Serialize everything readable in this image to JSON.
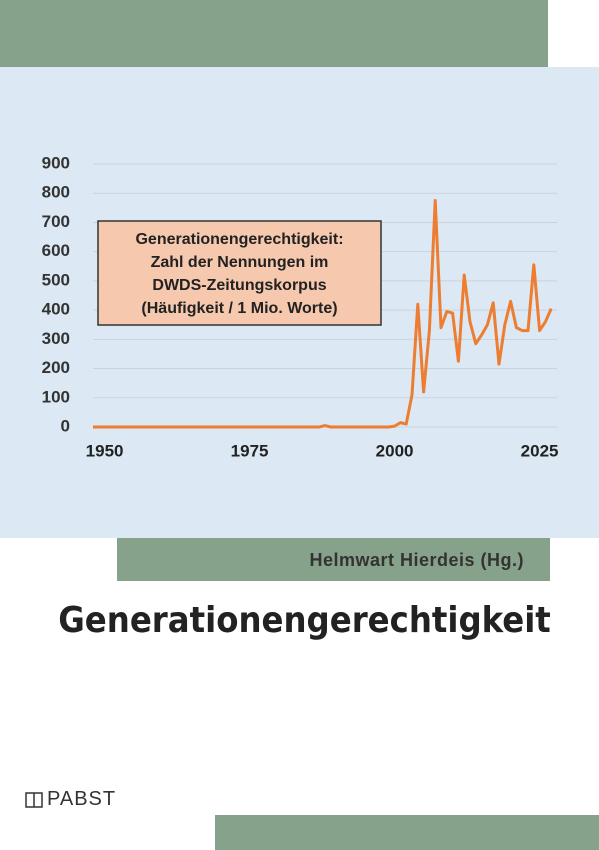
{
  "chart_data": {
    "type": "line",
    "annotation_lines": [
      "Generationengerechtigkeit:",
      "Zahl der Nennungen im",
      "DWDS-Zeitungskorpus",
      "(Häufigkeit / 1 Mio. Worte)"
    ],
    "x": [
      1948,
      1987,
      1988,
      1989,
      1999,
      2000,
      2001,
      2002,
      2003,
      2004,
      2005,
      2006,
      2007,
      2008,
      2009,
      2010,
      2011,
      2012,
      2013,
      2014,
      2015,
      2016,
      2017,
      2018,
      2019,
      2020,
      2021,
      2022,
      2023,
      2024,
      2025,
      2026,
      2027
    ],
    "series": [
      {
        "color": "#ed7d31",
        "values": [
          0,
          0,
          5,
          0,
          0,
          3,
          15,
          10,
          110,
          420,
          120,
          330,
          775,
          340,
          395,
          390,
          225,
          520,
          360,
          285,
          315,
          350,
          425,
          215,
          350,
          430,
          340,
          330,
          330,
          555,
          330,
          360,
          405
        ]
      }
    ],
    "xlim": [
      1948,
      2028
    ],
    "xticks": [
      1950,
      1975,
      2000,
      2025
    ],
    "ylim": [
      0,
      900
    ],
    "yticks": [
      0,
      100,
      200,
      300,
      400,
      500,
      600,
      700,
      800,
      900
    ],
    "grid": true
  },
  "cover": {
    "author": "Helmwart Hierdeis (Hg.)",
    "title": "Generationengerechtigkeit",
    "publisher": "PABST"
  }
}
